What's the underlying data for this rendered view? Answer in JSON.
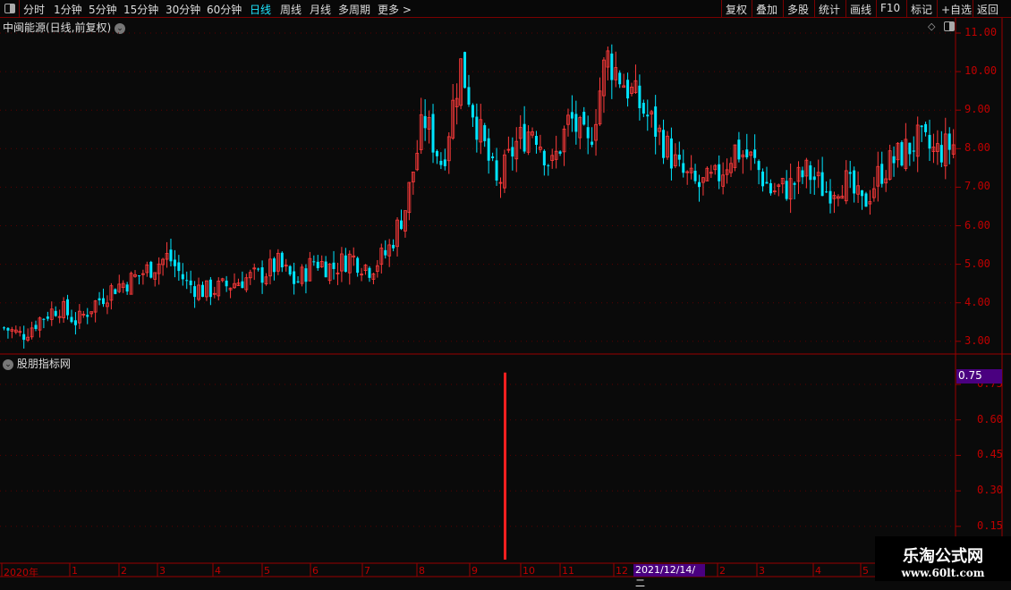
{
  "toolbar": {
    "periods": [
      "分时",
      "1分钟",
      "5分钟",
      "15分钟",
      "30分钟",
      "60分钟",
      "日线",
      "周线",
      "月线",
      "多周期",
      "更多 >"
    ],
    "active_period": "日线",
    "right_buttons": [
      "复权",
      "叠加",
      "多股",
      "统计",
      "画线",
      "F10",
      "标记",
      "+自选",
      "返回"
    ]
  },
  "main": {
    "title": "中闽能源(日线,前复权)"
  },
  "indicator": {
    "title": "股朋指标网",
    "readout": "0.75"
  },
  "time_axis": {
    "labels": [
      "2020年",
      "1",
      "2",
      "3",
      "4",
      "5",
      "6",
      "7",
      "8",
      "9",
      "10",
      "11",
      "12",
      "2",
      "3",
      "4",
      "5"
    ],
    "cursor_date": "2021/12/14/二"
  },
  "watermark": {
    "name": "乐淘公式网",
    "url": "www.60lt.com"
  },
  "colors": {
    "up": "#ff3b3b",
    "down": "#00e5ff",
    "axis": "#c00000",
    "grid": "#5a0000",
    "highlight": "#4a0080"
  },
  "chart_data": [
    {
      "type": "candlestick",
      "title": "中闽能源(日线,前复权)",
      "ylim": [
        2.8,
        11.2
      ],
      "yticks": [
        "11.00",
        "10.00",
        "9.00",
        "8.00",
        "7.00",
        "6.00",
        "5.00",
        "4.00",
        "3.00"
      ],
      "grid": true,
      "price_path": [
        3.35,
        3.15,
        3.6,
        3.9,
        3.5,
        4.0,
        4.4,
        4.6,
        4.9,
        5.2,
        4.5,
        4.3,
        4.4,
        4.6,
        4.7,
        5.0,
        4.5,
        5.1,
        4.9,
        5.2,
        4.9,
        5.3,
        6.5,
        8.8,
        7.6,
        10.2,
        8.5,
        7.0,
        8.1,
        8.6,
        7.5,
        8.8,
        8.0,
        10.4,
        9.7,
        9.0,
        8.3,
        7.4,
        7.0,
        7.2,
        8.0,
        7.7,
        6.9,
        7.0,
        7.4,
        6.9,
        7.2,
        6.5,
        7.4,
        7.8,
        8.2,
        7.9,
        8.1
      ]
    },
    {
      "type": "bar",
      "title": "股朋指标网",
      "ylim": [
        0.08,
        0.82
      ],
      "yticks": [
        "0.75",
        "0.60",
        "0.45",
        "0.30",
        "0.15"
      ],
      "bars": [
        {
          "date": "2021-09",
          "value": 0.8
        }
      ]
    }
  ]
}
